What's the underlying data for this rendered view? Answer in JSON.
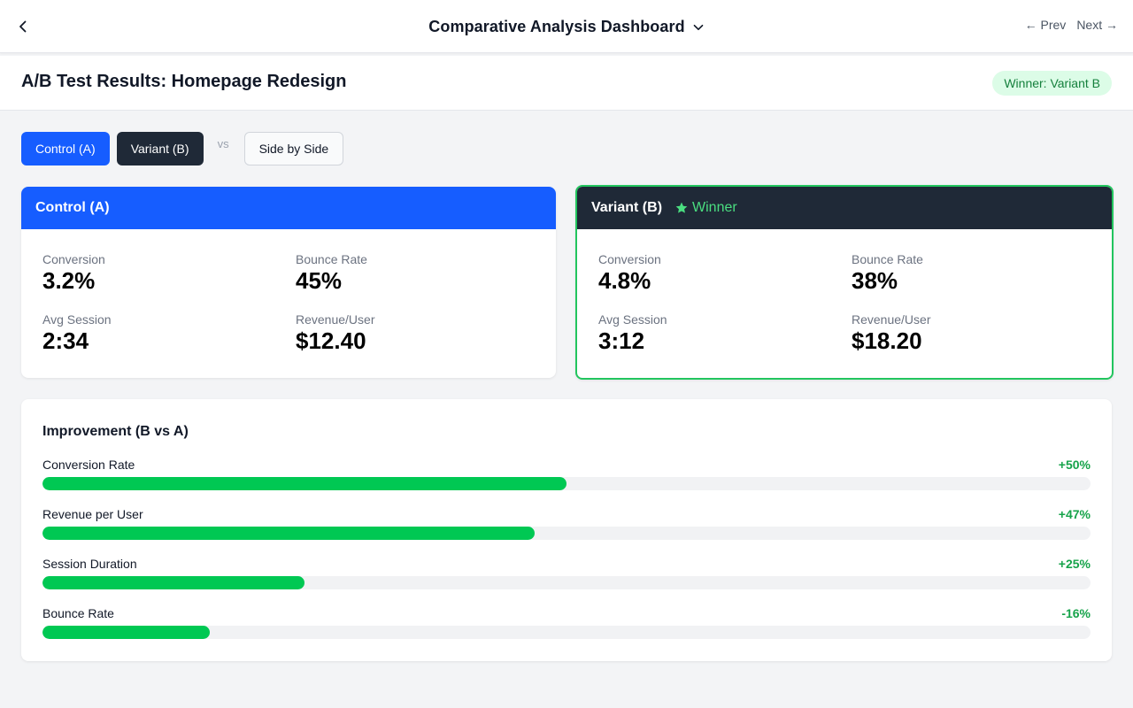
{
  "topbar": {
    "title": "Comparative Analysis Dashboard",
    "prev_label": "← Prev",
    "next_label": "Next →"
  },
  "header": {
    "title": "A/B Test Results: Homepage Redesign",
    "winner_badge": "Winner: Variant B"
  },
  "tabs": {
    "control": "Control (A)",
    "variant": "Variant (B)",
    "vs": "vs",
    "side_by_side": "Side by Side"
  },
  "control_card": {
    "title": "Control (A)",
    "metrics": [
      {
        "label": "Conversion",
        "value": "3.2%"
      },
      {
        "label": "Bounce Rate",
        "value": "45%"
      },
      {
        "label": "Avg Session",
        "value": "2:34"
      },
      {
        "label": "Revenue/User",
        "value": "$12.40"
      }
    ]
  },
  "variant_card": {
    "title": "Variant (B)",
    "winner_label": "Winner",
    "metrics": [
      {
        "label": "Conversion",
        "value": "4.8%"
      },
      {
        "label": "Bounce Rate",
        "value": "38%"
      },
      {
        "label": "Avg Session",
        "value": "3:12"
      },
      {
        "label": "Revenue/User",
        "value": "$18.20"
      }
    ]
  },
  "improvement": {
    "title": "Improvement (B vs A)",
    "rows": [
      {
        "label": "Conversion Rate",
        "pct": "+50%",
        "fill": 0.5
      },
      {
        "label": "Revenue per User",
        "pct": "+47%",
        "fill": 0.47
      },
      {
        "label": "Session Duration",
        "pct": "+25%",
        "fill": 0.25
      },
      {
        "label": "Bounce Rate",
        "pct": "-16%",
        "fill": 0.16
      }
    ]
  },
  "colors": {
    "control": "#165dff",
    "variant": "#1f2937",
    "winner_border": "#22c55e",
    "winner_text": "#4ade80",
    "bar_fill": "#00c853",
    "positive_text": "#16a34a"
  }
}
